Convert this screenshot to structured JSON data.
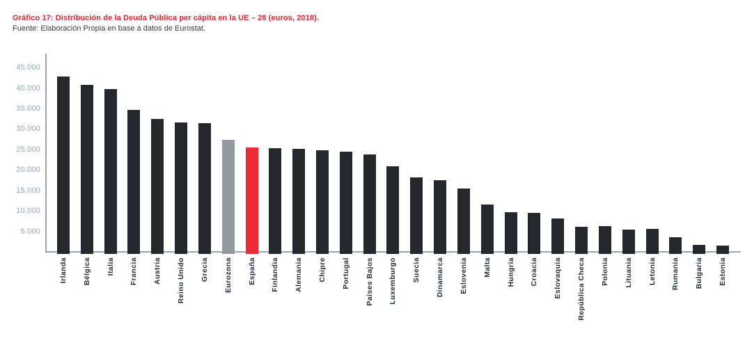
{
  "figure": {
    "title": "Gráfico 17: Distribución de la Deuda Pública per cápita en la UE – 28 (euros, 2018).",
    "source": "Fuente: Elaboración Propia en base a datos de Eurostat.",
    "title_color": "#E42531"
  },
  "chart_data": {
    "type": "bar",
    "title": "Gráfico 17: Distribución de la Deuda Pública per cápita en la UE – 28 (euros, 2018).",
    "subtitle": "Fuente: Elaboración Propia en base a datos de Eurostat.",
    "xlabel": "",
    "ylabel": "",
    "ylim": [
      0,
      47500
    ],
    "grid": false,
    "legend": false,
    "categories": [
      "Irlanda",
      "Bélgica",
      "Italia",
      "Francia",
      "Austria",
      "Reino Unido",
      "Grecia",
      "Eurozona",
      "España",
      "Finlandia",
      "Alemania",
      "Chipre",
      "Portugal",
      "Países Bajos",
      "Luxemburgo",
      "Suecia",
      "Dinamarca",
      "Eslovenia",
      "Malta",
      "Hungría",
      "Croacia",
      "Eslovaquia",
      "República Checa",
      "Polonia",
      "Lituania",
      "Letonia",
      "Rumania",
      "Bulgaria",
      "Estonia"
    ],
    "values": [
      43000,
      40900,
      39900,
      34900,
      32700,
      31700,
      31600,
      27600,
      25600,
      25500,
      25300,
      24900,
      24600,
      23900,
      21000,
      18400,
      17700,
      15700,
      11800,
      9900,
      9700,
      8300,
      6300,
      6500,
      5600,
      5700,
      3700,
      1900,
      1700
    ],
    "yticks": [
      {
        "label": "5.000",
        "value": 5000
      },
      {
        "label": "10.000",
        "value": 10000
      },
      {
        "label": "15.000",
        "value": 15000
      },
      {
        "label": "20.000",
        "value": 20000
      },
      {
        "label": "25.000",
        "value": 25000
      },
      {
        "label": "30.000",
        "value": 30000
      },
      {
        "label": "35.000",
        "value": 35000
      },
      {
        "label": "40.000",
        "value": 40000
      },
      {
        "label": "45.000",
        "value": 45000
      }
    ],
    "bar_default_color": "#24282D",
    "highlights": [
      {
        "category": "Eurozona",
        "color": "#939BA1"
      },
      {
        "category": "España",
        "color": "#ED2A35"
      }
    ],
    "axis_color": "#9AA4AC",
    "tick_label_color": "#98A2B0",
    "category_label_color": "#242A37"
  }
}
